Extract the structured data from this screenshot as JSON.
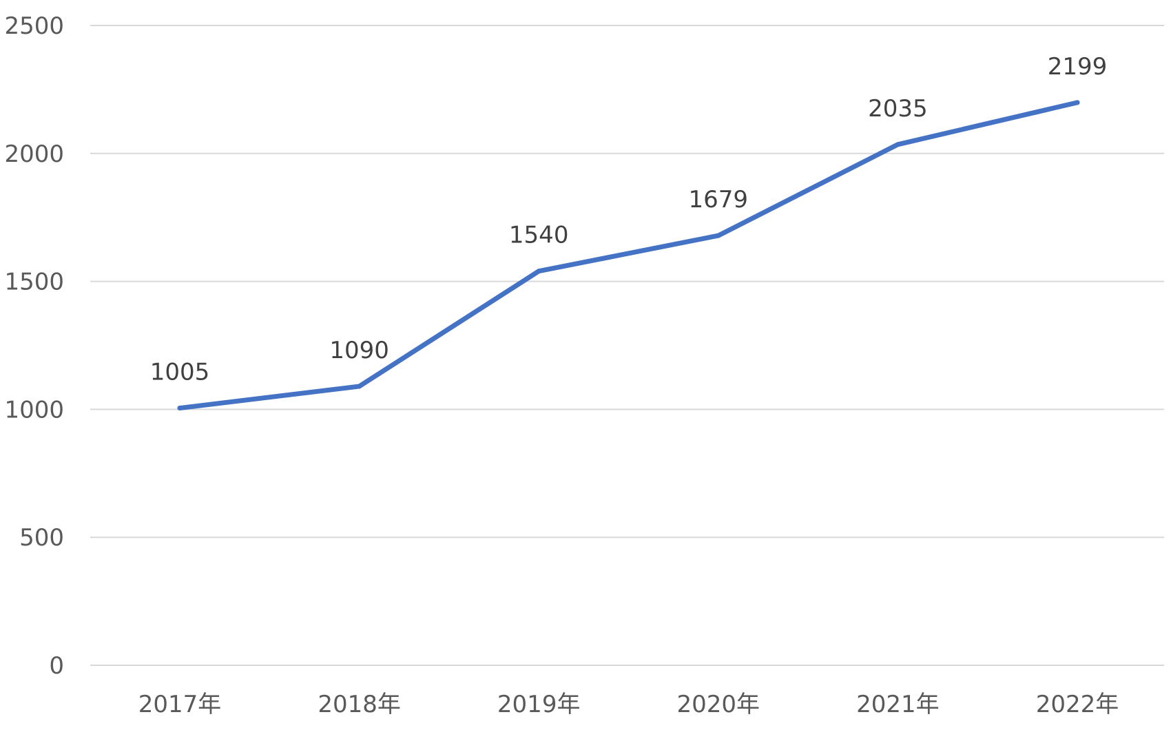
{
  "chart_data": {
    "type": "line",
    "title": "",
    "xlabel": "",
    "ylabel": "",
    "categories": [
      "2017年",
      "2018年",
      "2019年",
      "2020年",
      "2021年",
      "2022年"
    ],
    "series": [
      {
        "values": [
          1005,
          1090,
          1540,
          1679,
          2035,
          2199
        ],
        "color": "#4472c4",
        "data_labels": [
          "1005",
          "1090",
          "1540",
          "1679",
          "2035",
          "2199"
        ]
      }
    ],
    "ylim": [
      0,
      2500
    ],
    "y_ticks": [
      0,
      500,
      1000,
      1500,
      2000,
      2500
    ],
    "y_tick_labels": [
      "0",
      "500",
      "1000",
      "1500",
      "2000",
      "2500"
    ],
    "grid": "horizontal",
    "legend": "none"
  }
}
